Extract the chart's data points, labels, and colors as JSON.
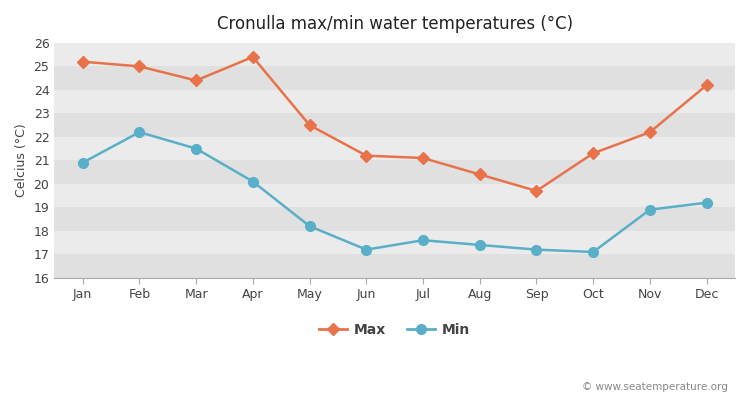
{
  "months": [
    "Jan",
    "Feb",
    "Mar",
    "Apr",
    "May",
    "Jun",
    "Jul",
    "Aug",
    "Sep",
    "Oct",
    "Nov",
    "Dec"
  ],
  "max_temps": [
    25.2,
    25.0,
    24.4,
    25.4,
    22.5,
    21.2,
    21.1,
    20.4,
    19.7,
    21.3,
    22.2,
    24.2
  ],
  "min_temps": [
    20.9,
    22.2,
    21.5,
    20.1,
    18.2,
    17.2,
    17.6,
    17.4,
    17.2,
    17.1,
    18.9,
    19.2
  ],
  "max_color": "#e8734a",
  "min_color": "#5aafc8",
  "title": "Cronulla max/min water temperatures (°C)",
  "ylabel": "Celcius (°C)",
  "ylim": [
    16,
    26
  ],
  "yticks": [
    16,
    17,
    18,
    19,
    20,
    21,
    22,
    23,
    24,
    25,
    26
  ],
  "plot_bg_light": "#ebebeb",
  "plot_bg_dark": "#e0e0e0",
  "fig_bg_color": "#ffffff",
  "grid_color": "#ffffff",
  "legend_max": "Max",
  "legend_min": "Min",
  "watermark": "© www.seatemperature.org",
  "max_marker": "D",
  "min_marker": "o",
  "marker_size_max": 6,
  "marker_size_min": 7,
  "line_width": 1.8
}
